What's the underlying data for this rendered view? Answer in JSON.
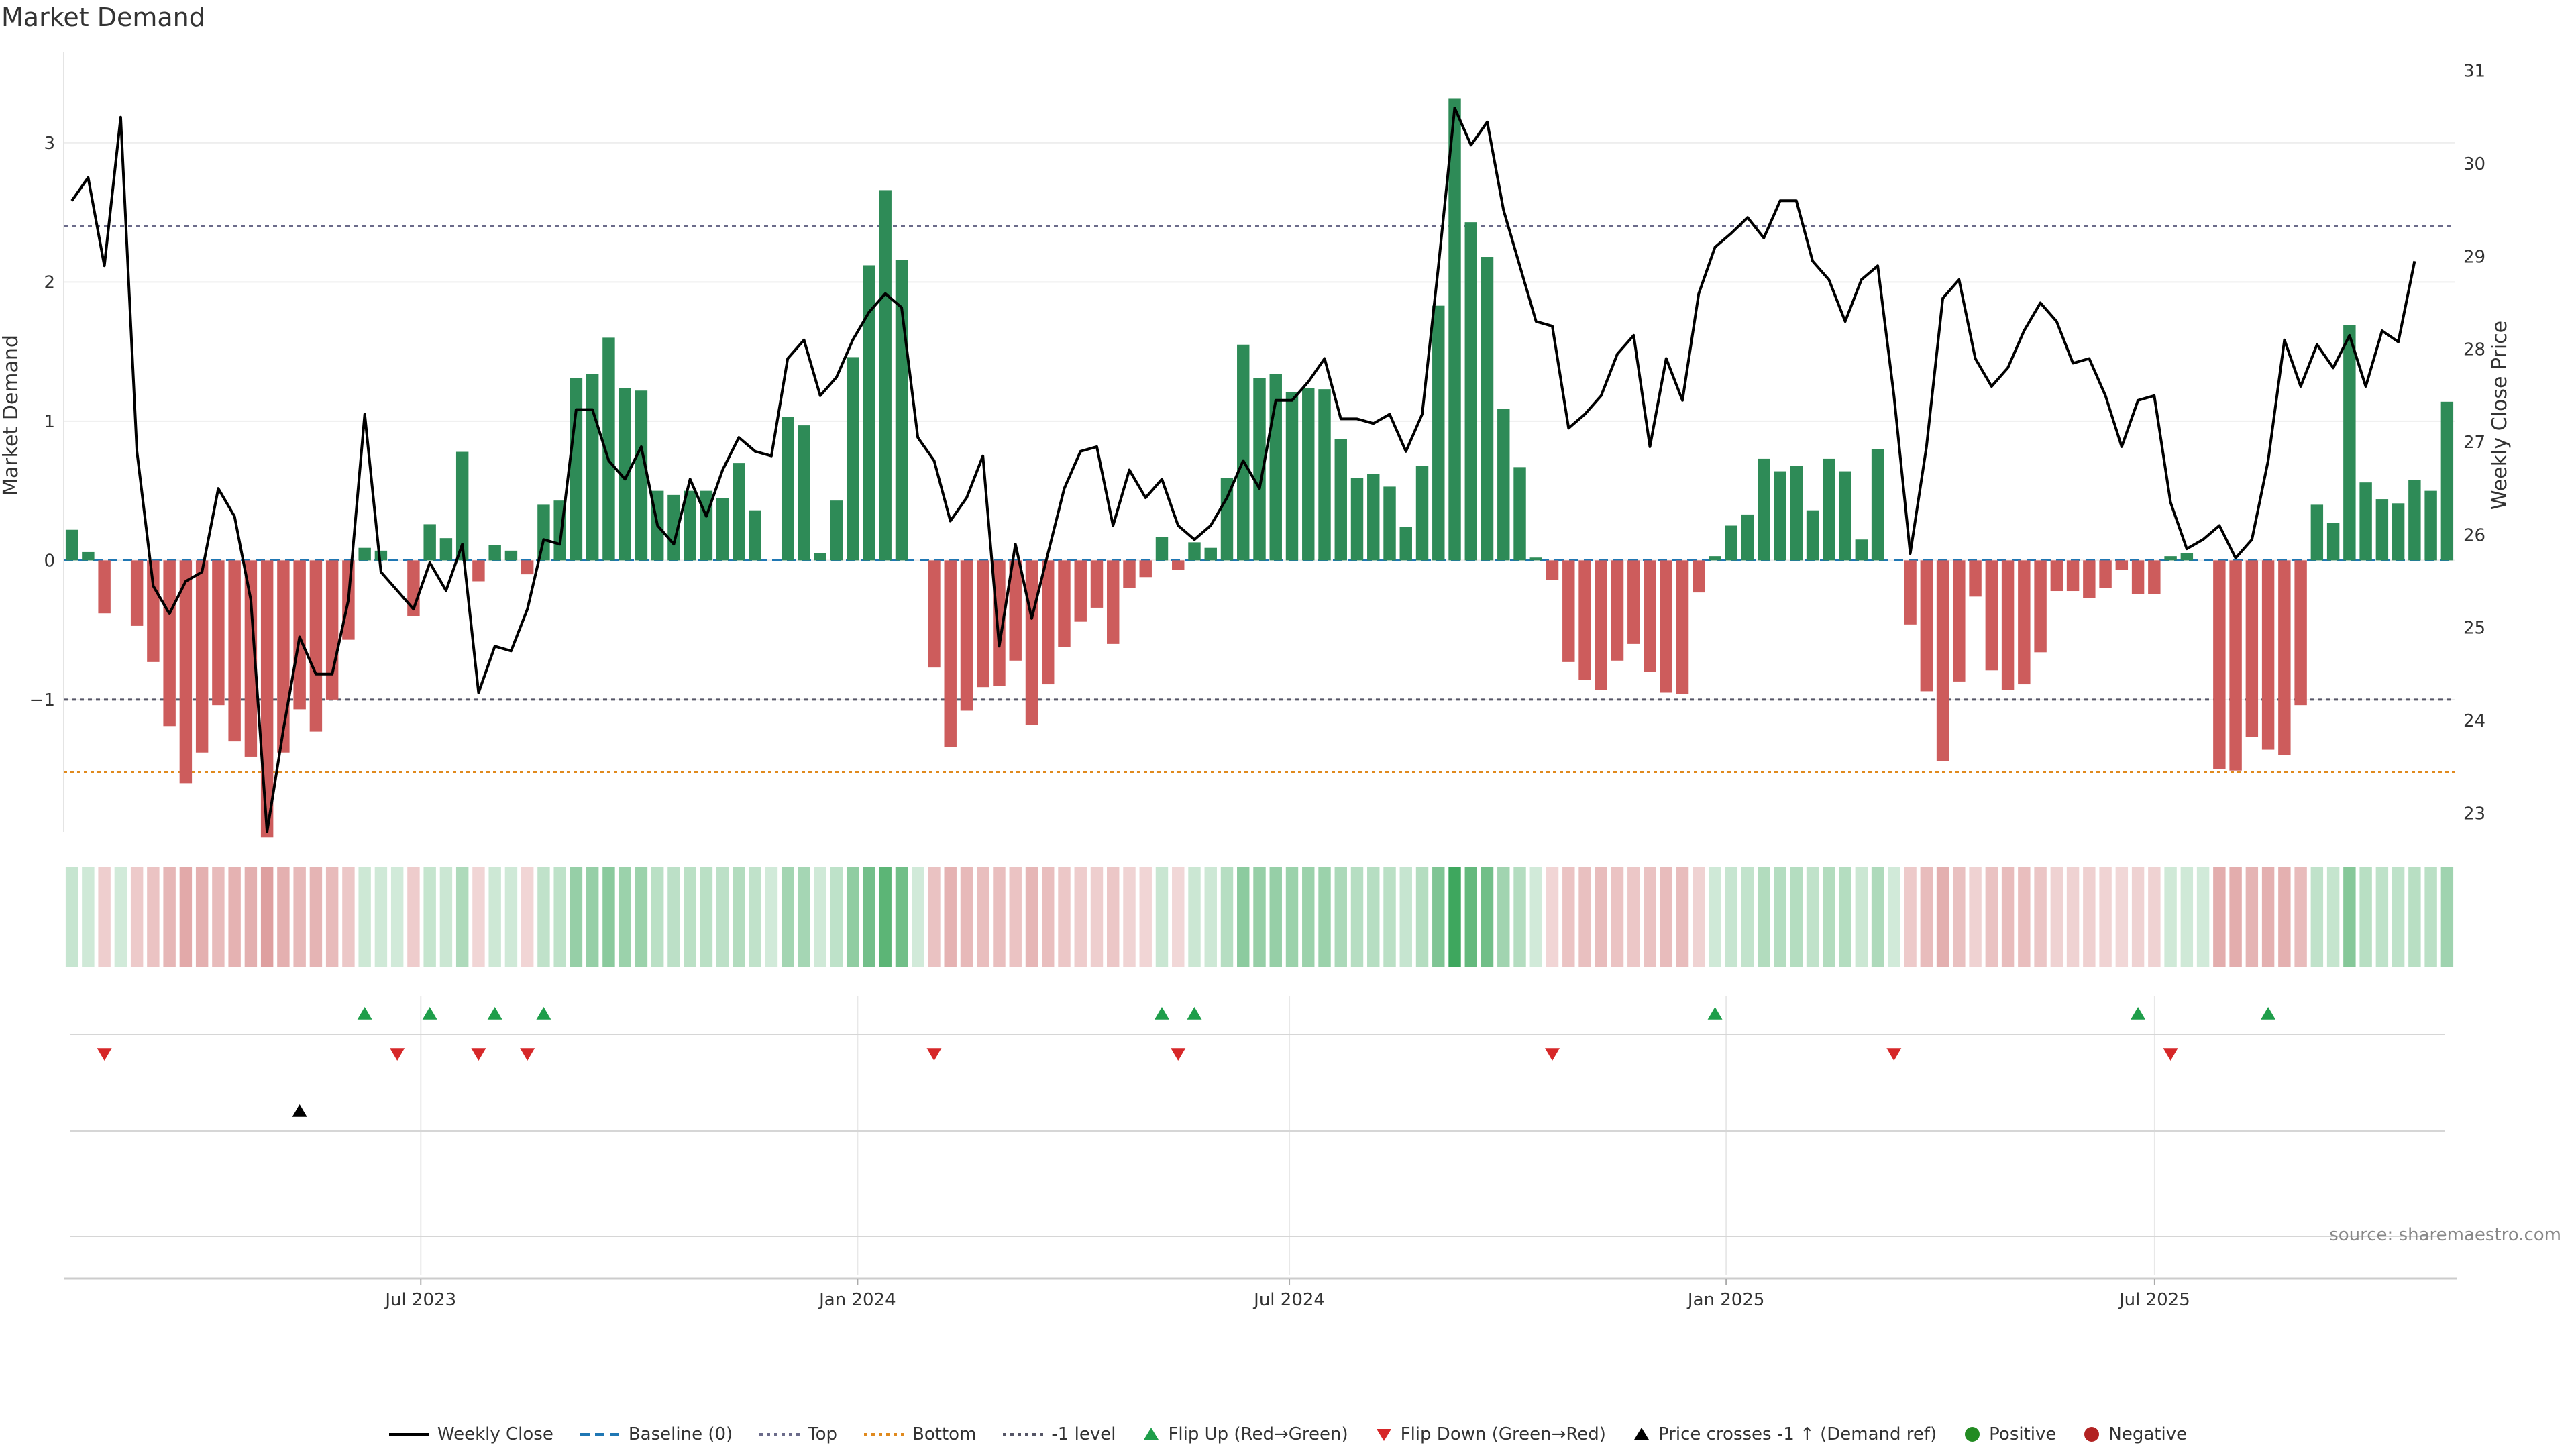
{
  "title": "Market Demand",
  "source": "source: sharemaestro.com",
  "colors": {
    "positive": "#2e8b57",
    "negative": "#cd5c5c",
    "price": "#000000",
    "baseline": "#1f77b4",
    "top": "#6b6b8a",
    "bottom": "#e08a1e",
    "minus_one": "#555566",
    "flip_up": "#1e9e4a",
    "flip_down": "#d62728",
    "cross": "#000000",
    "positive_dot": "#228b22",
    "negative_dot": "#b22222"
  },
  "legend": [
    {
      "label": "Weekly Close",
      "symbol": "line",
      "color": "#000000"
    },
    {
      "label": "Baseline (0)",
      "symbol": "dash",
      "color": "#1f77b4"
    },
    {
      "label": "Top",
      "symbol": "dot",
      "color": "#6b6b8a"
    },
    {
      "label": "Bottom",
      "symbol": "dot",
      "color": "#e08a1e"
    },
    {
      "label": "-1 level",
      "symbol": "dot",
      "color": "#555566"
    },
    {
      "label": "Flip Up (Red→Green)",
      "symbol": "tri-up",
      "color": "#1e9e4a"
    },
    {
      "label": "Flip Down (Green→Red)",
      "symbol": "tri-down",
      "color": "#d62728"
    },
    {
      "label": "Price crosses -1 ↑ (Demand ref)",
      "symbol": "tri-up",
      "color": "#000000"
    },
    {
      "label": "Positive",
      "symbol": "circle",
      "color": "#228b22"
    },
    {
      "label": "Negative",
      "symbol": "circle",
      "color": "#b22222"
    }
  ],
  "chart_data": {
    "type": "bar",
    "ylabel": "Market Demand",
    "ylabel_right": "Weekly Close Price",
    "ylim": [
      -1.95,
      3.65
    ],
    "yticks": [
      -1,
      0,
      1,
      2,
      3
    ],
    "ylim_right": [
      22.8,
      31.2
    ],
    "yticks_right": [
      23,
      24,
      25,
      26,
      27,
      28,
      29,
      30,
      31
    ],
    "xlim": [
      0,
      144
    ],
    "xticks": [
      {
        "label": "Jul 2023",
        "pos": 21.5
      },
      {
        "label": "Jan 2024",
        "pos": 47.8
      },
      {
        "label": "Jul 2024",
        "pos": 73.8
      },
      {
        "label": "Jan 2025",
        "pos": 100.1
      },
      {
        "label": "Jul 2025",
        "pos": 125.9
      }
    ],
    "reference_lines": {
      "baseline": 0,
      "top": 2.4,
      "bottom": -1.52,
      "minus_one": -1
    },
    "demand": [
      0.22,
      0.06,
      -0.38,
      0,
      -0.47,
      -0.73,
      -1.19,
      -1.6,
      -1.38,
      -1.04,
      -1.3,
      -1.41,
      -1.99,
      -1.38,
      -1.07,
      -1.23,
      -1.0,
      -0.57,
      0.09,
      0.07,
      0,
      -0.4,
      0.26,
      0.16,
      0.78,
      -0.15,
      0.11,
      0.07,
      -0.1,
      0.4,
      0.43,
      1.31,
      1.34,
      1.6,
      1.24,
      1.22,
      0.5,
      0.47,
      0.5,
      0.5,
      0.45,
      0.7,
      0.36,
      0,
      1.03,
      0.97,
      0.05,
      0.43,
      1.46,
      2.12,
      2.66,
      2.16,
      0,
      -0.77,
      -1.34,
      -1.08,
      -0.91,
      -0.9,
      -0.72,
      -1.18,
      -0.89,
      -0.62,
      -0.44,
      -0.34,
      -0.6,
      -0.2,
      -0.12,
      0.17,
      -0.07,
      0.13,
      0.09,
      0.59,
      1.55,
      1.31,
      1.34,
      1.21,
      1.24,
      1.23,
      0.87,
      0.59,
      0.62,
      0.53,
      0.24,
      0.68,
      1.83,
      3.32,
      2.43,
      2.18,
      1.09,
      0.67,
      0.02,
      -0.14,
      -0.73,
      -0.86,
      -0.93,
      -0.72,
      -0.6,
      -0.8,
      -0.95,
      -0.96,
      -0.23,
      0.03,
      0.25,
      0.33,
      0.73,
      0.64,
      0.68,
      0.36,
      0.73,
      0.64,
      0.15,
      0.8,
      0,
      -0.46,
      -0.94,
      -1.44,
      -0.87,
      -0.26,
      -0.79,
      -0.93,
      -0.89,
      -0.66,
      -0.22,
      -0.22,
      -0.27,
      -0.2,
      -0.07,
      -0.24,
      -0.24,
      0.03,
      0.05,
      0,
      -1.5,
      -1.51,
      -1.27,
      -1.36,
      -1.4,
      -1.04,
      0.4,
      0.27,
      1.69,
      0.56,
      0.44,
      0.41,
      0.58,
      0.5,
      1.14
    ],
    "weekly_close": [
      29.6,
      29.85,
      28.9,
      30.5,
      26.9,
      25.45,
      25.15,
      25.5,
      25.6,
      26.5,
      26.2,
      25.3,
      22.8,
      23.9,
      24.9,
      24.5,
      24.5,
      25.3,
      27.3,
      25.6,
      25.4,
      25.2,
      25.7,
      25.4,
      25.9,
      24.3,
      24.8,
      24.75,
      25.2,
      25.95,
      25.9,
      27.35,
      27.35,
      26.8,
      26.6,
      26.95,
      26.1,
      25.9,
      26.6,
      26.2,
      26.7,
      27.05,
      26.9,
      26.85,
      27.9,
      28.1,
      27.5,
      27.7,
      28.1,
      28.4,
      28.6,
      28.45,
      27.05,
      26.8,
      26.15,
      26.4,
      26.85,
      24.8,
      25.9,
      25.1,
      25.8,
      26.5,
      26.9,
      26.95,
      26.1,
      26.7,
      26.4,
      26.6,
      26.1,
      25.95,
      26.1,
      26.4,
      26.8,
      26.5,
      27.45,
      27.45,
      27.65,
      27.9,
      27.25,
      27.25,
      27.2,
      27.3,
      26.9,
      27.3,
      28.9,
      30.6,
      30.2,
      30.45,
      29.5,
      28.9,
      28.3,
      28.25,
      27.15,
      27.3,
      27.5,
      27.95,
      28.15,
      26.95,
      27.9,
      27.45,
      28.6,
      29.1,
      29.25,
      29.42,
      29.2,
      29.6,
      29.6,
      28.95,
      28.75,
      28.3,
      28.75,
      28.9,
      27.5,
      25.8,
      26.95,
      28.55,
      28.75,
      27.9,
      27.6,
      27.8,
      28.2,
      28.5,
      28.3,
      27.85,
      27.9,
      27.5,
      26.95,
      27.45,
      27.5,
      26.35,
      25.85,
      25.95,
      26.1,
      25.75,
      25.95,
      26.8,
      28.1,
      27.6,
      28.05,
      27.8,
      28.15,
      27.6,
      28.2,
      28.08,
      28.95
    ],
    "flip_up": [
      18,
      22,
      26,
      29,
      67,
      69,
      101,
      127,
      135
    ],
    "flip_down": [
      2,
      20,
      25,
      28,
      53,
      68,
      91,
      112,
      129
    ],
    "price_cross_up": [
      14
    ]
  }
}
